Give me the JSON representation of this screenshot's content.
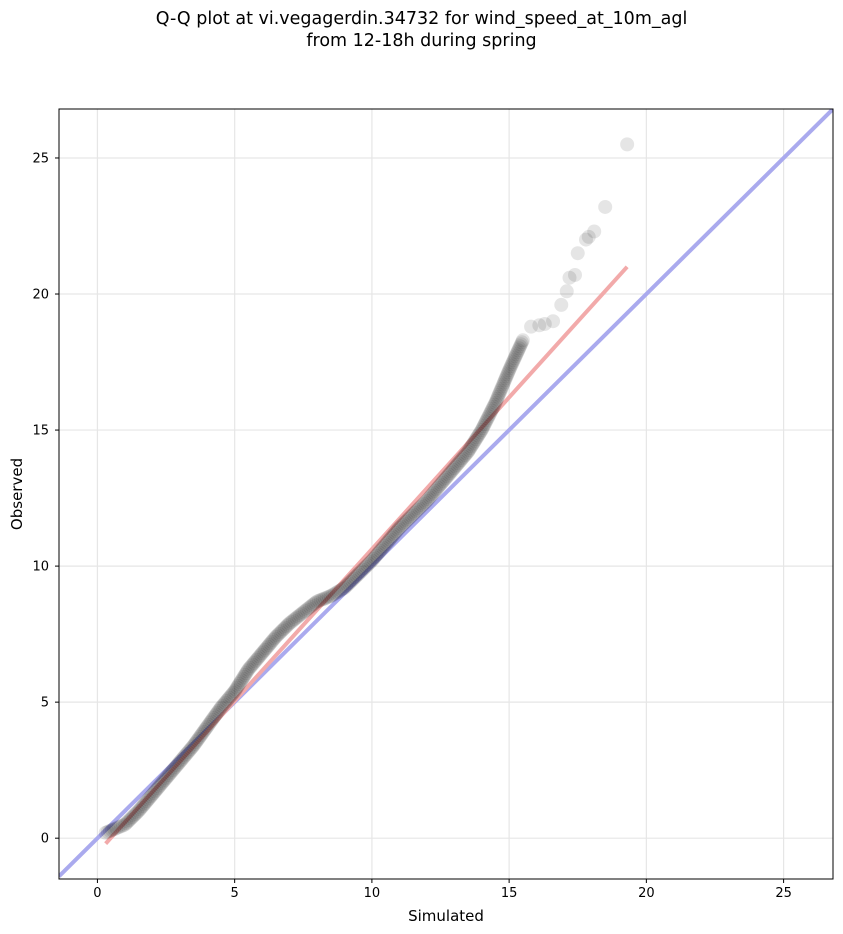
{
  "title_lines": [
    "Q-Q plot at vi.vegagerdin.34732 for wind_speed_at_10m_agl",
    "from 12-18h during spring"
  ],
  "chart_data": {
    "type": "scatter",
    "title": "Q-Q plot at vi.vegagerdin.34732 for wind_speed_at_10m_agl\nfrom 12-18h during spring",
    "xlabel": "Simulated",
    "ylabel": "Observed",
    "xlim": [
      -1.4,
      26.8
    ],
    "ylim": [
      -1.5,
      26.8
    ],
    "xticks": [
      0,
      5,
      10,
      15,
      20,
      25
    ],
    "yticks": [
      0,
      5,
      10,
      15,
      20,
      25
    ],
    "grid": true,
    "colors": {
      "points": "#000000",
      "identity_line": "#aaaaee",
      "fit_line": "#f2aaaa"
    },
    "identity_line": {
      "x": [
        -1.4,
        26.8
      ],
      "y": [
        -1.4,
        26.8
      ]
    },
    "fit_line": {
      "x": [
        0.3,
        19.3
      ],
      "y": [
        -0.2,
        21.0
      ]
    },
    "curve_points": [
      {
        "x": 0.3,
        "y": 0.2
      },
      {
        "x": 1.0,
        "y": 0.5
      },
      {
        "x": 1.5,
        "y": 1.0
      },
      {
        "x": 2.0,
        "y": 1.6
      },
      {
        "x": 2.5,
        "y": 2.2
      },
      {
        "x": 3.0,
        "y": 2.8
      },
      {
        "x": 3.5,
        "y": 3.4
      },
      {
        "x": 4.0,
        "y": 4.1
      },
      {
        "x": 4.5,
        "y": 4.8
      },
      {
        "x": 5.0,
        "y": 5.4
      },
      {
        "x": 5.5,
        "y": 6.2
      },
      {
        "x": 6.0,
        "y": 6.8
      },
      {
        "x": 6.5,
        "y": 7.4
      },
      {
        "x": 7.0,
        "y": 7.9
      },
      {
        "x": 7.5,
        "y": 8.3
      },
      {
        "x": 8.0,
        "y": 8.7
      },
      {
        "x": 8.5,
        "y": 8.9
      },
      {
        "x": 9.0,
        "y": 9.2
      },
      {
        "x": 9.5,
        "y": 9.7
      },
      {
        "x": 10.0,
        "y": 10.2
      },
      {
        "x": 10.5,
        "y": 10.8
      },
      {
        "x": 11.0,
        "y": 11.4
      },
      {
        "x": 11.5,
        "y": 11.9
      },
      {
        "x": 12.0,
        "y": 12.4
      },
      {
        "x": 12.5,
        "y": 13.0
      },
      {
        "x": 13.0,
        "y": 13.6
      },
      {
        "x": 13.5,
        "y": 14.2
      },
      {
        "x": 14.0,
        "y": 15.0
      },
      {
        "x": 14.5,
        "y": 16.0
      },
      {
        "x": 15.0,
        "y": 17.2
      },
      {
        "x": 15.5,
        "y": 18.3
      }
    ],
    "tail_points": [
      {
        "x": 15.8,
        "y": 18.8
      },
      {
        "x": 16.1,
        "y": 18.85
      },
      {
        "x": 16.3,
        "y": 18.9
      },
      {
        "x": 16.6,
        "y": 19.0
      },
      {
        "x": 16.9,
        "y": 19.6
      },
      {
        "x": 17.1,
        "y": 20.1
      },
      {
        "x": 17.2,
        "y": 20.6
      },
      {
        "x": 17.4,
        "y": 20.7
      },
      {
        "x": 17.5,
        "y": 21.5
      },
      {
        "x": 17.8,
        "y": 22.0
      },
      {
        "x": 17.9,
        "y": 22.1
      },
      {
        "x": 18.1,
        "y": 22.3
      },
      {
        "x": 18.5,
        "y": 23.2
      },
      {
        "x": 19.3,
        "y": 25.5
      }
    ]
  }
}
